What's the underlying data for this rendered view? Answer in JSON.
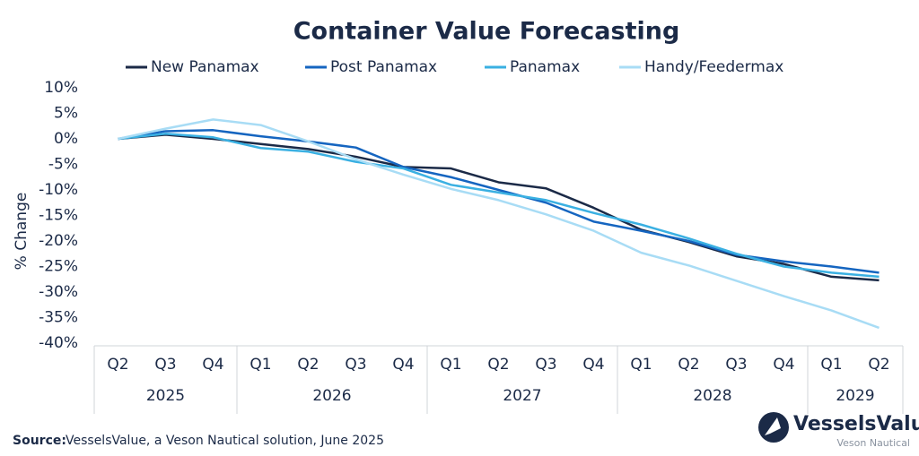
{
  "chart_data": {
    "type": "line",
    "title": "Container Value Forecasting",
    "y_label": "% Change",
    "categories": [
      "Q2",
      "Q3",
      "Q4",
      "Q1",
      "Q2",
      "Q3",
      "Q4",
      "Q1",
      "Q2",
      "Q3",
      "Q4",
      "Q1",
      "Q2",
      "Q3",
      "Q4",
      "Q1",
      "Q2"
    ],
    "group_labels": [
      "2025",
      "2026",
      "2027",
      "2028",
      "2029"
    ],
    "group_sizes": [
      3,
      4,
      4,
      4,
      2
    ],
    "series": [
      {
        "name": "New Panamax",
        "color": "#1b2a47",
        "values": [
          0,
          0.8,
          0,
          -1,
          -2,
          -3.5,
          -5.5,
          -5.8,
          -8.5,
          -9.7,
          -13.5,
          -17.8,
          -20.2,
          -23,
          -24.5,
          -27,
          -27.7
        ]
      },
      {
        "name": "Post Panamax",
        "color": "#1565c0",
        "values": [
          0,
          1.5,
          1.7,
          0.5,
          -0.5,
          -1.7,
          -5.5,
          -7.5,
          -10,
          -12.5,
          -16.2,
          -18,
          -20,
          -22.7,
          -24,
          -25,
          -26.2
        ]
      },
      {
        "name": "Panamax",
        "color": "#3ab0e2",
        "values": [
          0,
          1,
          0.3,
          -1.8,
          -2.5,
          -4.5,
          -5.8,
          -9,
          -10.5,
          -12,
          -14.5,
          -16.8,
          -19.5,
          -22.5,
          -25,
          -26.2,
          -27
        ]
      },
      {
        "name": "Handy/Feedermax",
        "color": "#a8dcf5",
        "values": [
          0,
          2,
          3.8,
          2.7,
          -0.5,
          -4,
          -7,
          -9.8,
          -12,
          -14.8,
          -18,
          -22.3,
          -24.8,
          -27.8,
          -30.8,
          -33.6,
          -37
        ]
      }
    ],
    "ylim": [
      -40,
      10
    ],
    "yticks": [
      {
        "value": 10,
        "label": "10%"
      },
      {
        "value": 5,
        "label": "5%"
      },
      {
        "value": 0,
        "label": "0%"
      },
      {
        "value": -5,
        "label": "-5%"
      },
      {
        "value": -10,
        "label": "-10%"
      },
      {
        "value": -15,
        "label": "-15%"
      },
      {
        "value": -20,
        "label": "-20%"
      },
      {
        "value": -25,
        "label": "-25%"
      },
      {
        "value": -30,
        "label": "-30%"
      },
      {
        "value": -35,
        "label": "-35%"
      },
      {
        "value": -40,
        "label": "-40%"
      }
    ],
    "grid": false,
    "legend": "top",
    "source_label": "Source:",
    "source": "VesselsValue, a Veson Nautical solution, June 2025",
    "logo": "VesselsValue",
    "logo_sub": "Veson Nautical"
  }
}
